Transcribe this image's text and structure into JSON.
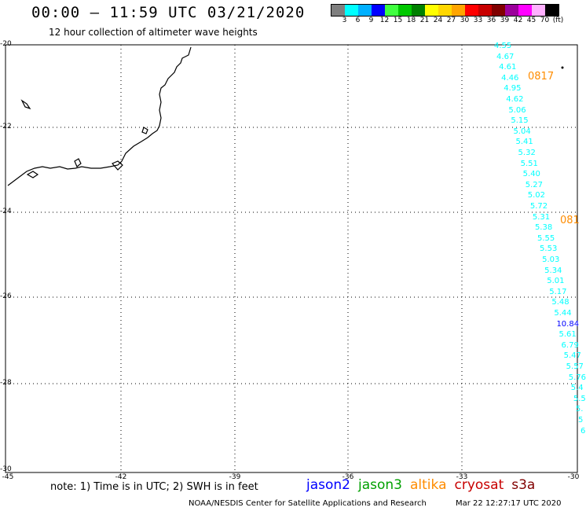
{
  "header": {
    "title": "00:00 – 11:59 UTC 03/21/2020",
    "subtitle": "12 hour collection of altimeter wave heights"
  },
  "legend": {
    "colors": [
      "#7f7f7f",
      "#00ffff",
      "#00b0ff",
      "#0000ff",
      "#40ff40",
      "#00c800",
      "#008000",
      "#ffff00",
      "#ffd700",
      "#ffa500",
      "#ff0000",
      "#c80000",
      "#800000",
      "#9b009b",
      "#ff00ff",
      "#ffb0ff",
      "#000000"
    ],
    "labels": [
      "3",
      "6",
      "9",
      "12",
      "15",
      "18",
      "21",
      "24",
      "27",
      "30",
      "33",
      "36",
      "39",
      "42",
      "45",
      "70",
      "(ft)"
    ]
  },
  "axes": {
    "lat_labels": [
      "-20",
      "-22",
      "-24",
      "-26",
      "-28",
      "-30"
    ],
    "lon_labels": [
      "-45",
      "-42",
      "-39",
      "-36",
      "-33",
      "-30"
    ]
  },
  "wave_heights": [
    {
      "v": "4.55",
      "c": "#00ffff"
    },
    {
      "v": "4.67",
      "c": "#00ffff"
    },
    {
      "v": "4.61",
      "c": "#00ffff"
    },
    {
      "v": "4.46",
      "c": "#00ffff"
    },
    {
      "v": "4.95",
      "c": "#00ffff"
    },
    {
      "v": "4.62",
      "c": "#00ffff"
    },
    {
      "v": "5.06",
      "c": "#00ffff"
    },
    {
      "v": "5.15",
      "c": "#00ffff"
    },
    {
      "v": "5.04",
      "c": "#00ffff"
    },
    {
      "v": "5.41",
      "c": "#00ffff"
    },
    {
      "v": "5.32",
      "c": "#00ffff"
    },
    {
      "v": "5.51",
      "c": "#00ffff"
    },
    {
      "v": "5.40",
      "c": "#00ffff"
    },
    {
      "v": "5.27",
      "c": "#00ffff"
    },
    {
      "v": "5.02",
      "c": "#00ffff"
    },
    {
      "v": "5.72",
      "c": "#00ffff"
    },
    {
      "v": "5.31",
      "c": "#00ffff"
    },
    {
      "v": "5.38",
      "c": "#00ffff"
    },
    {
      "v": "5.55",
      "c": "#00ffff"
    },
    {
      "v": "5.53",
      "c": "#00ffff"
    },
    {
      "v": "5.03",
      "c": "#00ffff"
    },
    {
      "v": "5.34",
      "c": "#00ffff"
    },
    {
      "v": "5.01",
      "c": "#00ffff"
    },
    {
      "v": "5.17",
      "c": "#00ffff"
    },
    {
      "v": "5.48",
      "c": "#00ffff"
    },
    {
      "v": "5.44",
      "c": "#00ffff"
    },
    {
      "v": "10.84",
      "c": "#0000ff"
    },
    {
      "v": "5.61",
      "c": "#00ffff"
    },
    {
      "v": "6.79",
      "c": "#00ffff"
    },
    {
      "v": "5.47",
      "c": "#00ffff"
    },
    {
      "v": "5.57",
      "c": "#00ffff"
    },
    {
      "v": "5.76",
      "c": "#00ffff"
    },
    {
      "v": "5.4",
      "c": "#00ffff"
    },
    {
      "v": "5.5",
      "c": "#00ffff"
    },
    {
      "v": "5.",
      "c": "#00ffff"
    },
    {
      "v": "5",
      "c": "#00ffff"
    },
    {
      "v": "6",
      "c": "#00ffff"
    }
  ],
  "pass_labels": [
    "0817",
    "081"
  ],
  "footer": {
    "note": "note: 1) Time is in UTC; 2) SWH is in feet",
    "satellites": [
      {
        "name": "jason2",
        "color": "#0000ff"
      },
      {
        "name": "jason3",
        "color": "#00a000"
      },
      {
        "name": "altika",
        "color": "#ff8c00"
      },
      {
        "name": "cryosat",
        "color": "#c80000"
      },
      {
        "name": "s3a",
        "color": "#800000"
      }
    ],
    "credit": "NOAA/NESDIS Center for Satellite Applications and Research",
    "timestamp": "Mar 22 12:27:17 UTC 2020"
  }
}
